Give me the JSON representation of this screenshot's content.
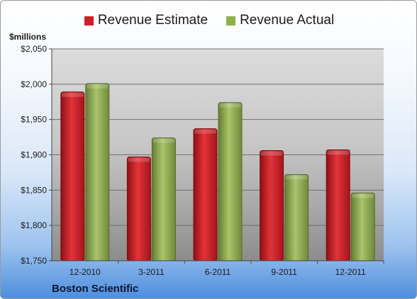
{
  "chart_data": {
    "type": "bar",
    "title": "",
    "xlabel": "",
    "ylabel": "$millions",
    "company": "Boston Scientific",
    "categories": [
      "12-2010",
      "3-2011",
      "6-2011",
      "9-2011",
      "12-2011"
    ],
    "series": [
      {
        "name": "Revenue Estimate",
        "color": "#cc1f27",
        "values": [
          1989,
          1897,
          1937,
          1906,
          1907
        ]
      },
      {
        "name": "Revenue Actual",
        "color": "#8fae4e",
        "values": [
          2001,
          1924,
          1974,
          1872,
          1846
        ]
      }
    ],
    "ylim": [
      1750,
      2050
    ],
    "yticks": [
      1750,
      1800,
      1850,
      1900,
      1950,
      2000,
      2050
    ],
    "ytick_labels": [
      "$1,750",
      "$1,800",
      "$1,850",
      "$1,900",
      "$1,950",
      "$2,000",
      "$2,050"
    ],
    "grid": true,
    "legend_position": "top-center"
  }
}
